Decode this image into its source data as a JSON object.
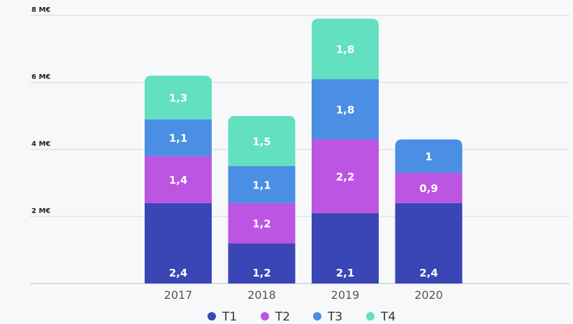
{
  "chart_data": {
    "type": "bar",
    "stacked": true,
    "title": "",
    "xlabel": "",
    "ylabel": "",
    "ylim": [
      0,
      8
    ],
    "yticks": [
      2,
      4,
      6,
      8
    ],
    "ytick_labels": [
      "2 M€",
      "4 M€",
      "6 M€",
      "8 M€"
    ],
    "grid": true,
    "legend_position": "bottom",
    "categories": [
      "2017",
      "2018",
      "2019",
      "2020"
    ],
    "series": [
      {
        "name": "T1",
        "color": "#3a46b5",
        "values": [
          2.4,
          1.2,
          2.1,
          2.4
        ]
      },
      {
        "name": "T2",
        "color": "#bc55e2",
        "values": [
          1.4,
          1.2,
          2.2,
          0.9
        ]
      },
      {
        "name": "T3",
        "color": "#4a8fe3",
        "values": [
          1.1,
          1.1,
          1.8,
          1
        ]
      },
      {
        "name": "T4",
        "color": "#62e0c0",
        "values": [
          1.3,
          1.5,
          1.8,
          null
        ]
      }
    ]
  }
}
